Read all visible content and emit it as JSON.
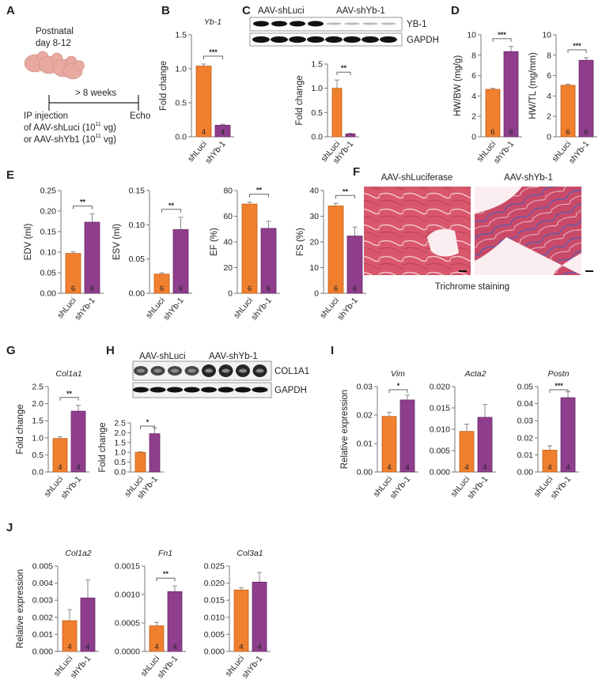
{
  "panels": {
    "A": "A",
    "B": "B",
    "C": "C",
    "D": "D",
    "E": "E",
    "F": "F",
    "G": "G",
    "H": "H",
    "I": "I",
    "J": "J"
  },
  "panel_a": {
    "age_line1": "Postnatal",
    "age_line2": "day 8-12",
    "duration": "> 8 weeks",
    "end_label": "Echo",
    "injection_line1": "IP injection",
    "injection_line2": "of AAV-shLuci (10",
    "injection_line2_exp": "11",
    "injection_line2_end": " vg)",
    "injection_line3": "or AAV-shYb1 (10",
    "injection_line3_exp": "11",
    "injection_line3_end": " vg)"
  },
  "blot_c": {
    "group1": "AAV-shLuci",
    "group2": "AAV-shYb-1",
    "row1": "YB-1",
    "row2": "GAPDH"
  },
  "blot_h": {
    "group1": "AAV-shLuci",
    "group2": "AAV-shYb-1",
    "row1": "COL1A1",
    "row2": "GAPDH"
  },
  "panel_f": {
    "left_title": "AAV-shLuciferase",
    "right_title": "AAV-shYb-1",
    "caption": "Trichrome staining"
  },
  "colors": {
    "shLuci": "#f07f2e",
    "shYb-1": "#8e3e8c",
    "shLuci_edge": "#c0601c",
    "shYb-1_edge": "#6a2a68"
  },
  "chart_data": [
    {
      "id": "B",
      "type": "bar",
      "title": "Yb-1",
      "ylabel": "Fold change",
      "categories": [
        "shLuci",
        "shYb-1"
      ],
      "values": [
        1.04,
        0.17
      ],
      "errors": [
        0.03,
        0.015
      ],
      "n": [
        "4",
        "4"
      ],
      "significance": "***",
      "ylim": [
        0,
        1.5
      ],
      "yticks": [
        "0.0",
        "0.5",
        "1.0",
        "1.5"
      ]
    },
    {
      "id": "C",
      "type": "bar",
      "title": "",
      "ylabel": "Fold change",
      "categories": [
        "shLuci",
        "shYb-1"
      ],
      "values": [
        1.0,
        0.06
      ],
      "errors": [
        0.17,
        0.01
      ],
      "n": [
        "",
        ""
      ],
      "significance": "**",
      "ylim": [
        0,
        1.5
      ],
      "yticks": [
        "0.0",
        "0.5",
        "1.0",
        "1.5"
      ]
    },
    {
      "id": "D1",
      "type": "bar",
      "title": "",
      "ylabel": "HW/BW (mg/g)",
      "categories": [
        "shLuci",
        "shYb-1"
      ],
      "values": [
        4.65,
        8.35
      ],
      "errors": [
        0.1,
        0.5
      ],
      "n": [
        "6",
        "6"
      ],
      "significance": "***",
      "ylim": [
        0,
        10
      ],
      "yticks": [
        "0",
        "2",
        "4",
        "6",
        "8",
        "10"
      ]
    },
    {
      "id": "D2",
      "type": "bar",
      "title": "",
      "ylabel": "HW/TL (mg/mm)",
      "categories": [
        "shLuci",
        "shYb-1"
      ],
      "values": [
        5.05,
        7.5
      ],
      "errors": [
        0.1,
        0.25
      ],
      "n": [
        "6",
        "6"
      ],
      "significance": "***",
      "ylim": [
        0,
        10
      ],
      "yticks": [
        "0",
        "2",
        "4",
        "6",
        "8",
        "10"
      ]
    },
    {
      "id": "E1",
      "type": "bar",
      "title": "",
      "ylabel": "EDV (ml)",
      "categories": [
        "shLuci",
        "shYb-1"
      ],
      "values": [
        0.097,
        0.173
      ],
      "errors": [
        0.004,
        0.02
      ],
      "n": [
        "6",
        "6"
      ],
      "significance": "**",
      "ylim": [
        0,
        0.25
      ],
      "yticks": [
        "0.00",
        "0.05",
        "0.10",
        "0.15",
        "0.20",
        "0.25"
      ]
    },
    {
      "id": "E2",
      "type": "bar",
      "title": "",
      "ylabel": "ESV (ml)",
      "categories": [
        "shLuci",
        "shYb-1"
      ],
      "values": [
        0.028,
        0.093
      ],
      "errors": [
        0.002,
        0.018
      ],
      "n": [
        "6",
        "6"
      ],
      "significance": "**",
      "ylim": [
        0,
        0.15
      ],
      "yticks": [
        "0.00",
        "0.05",
        "0.10",
        "0.15"
      ]
    },
    {
      "id": "E3",
      "type": "bar",
      "title": "",
      "ylabel": "EF (%)",
      "categories": [
        "shLuci",
        "shYb-1"
      ],
      "values": [
        69.5,
        50.5
      ],
      "errors": [
        1.5,
        5.5
      ],
      "n": [
        "6",
        "6"
      ],
      "significance": "**",
      "ylim": [
        0,
        80
      ],
      "yticks": [
        "0",
        "20",
        "40",
        "60",
        "80"
      ]
    },
    {
      "id": "E4",
      "type": "bar",
      "title": "",
      "ylabel": "FS (%)",
      "categories": [
        "shLuci",
        "shYb-1"
      ],
      "values": [
        34,
        22.3
      ],
      "errors": [
        1,
        3.5
      ],
      "n": [
        "6",
        "6"
      ],
      "significance": "**",
      "ylim": [
        0,
        40
      ],
      "yticks": [
        "0",
        "10",
        "20",
        "30",
        "40"
      ]
    },
    {
      "id": "G",
      "type": "bar",
      "title": "Col1a1",
      "ylabel": "Fold change",
      "categories": [
        "shLuci",
        "shYb-1"
      ],
      "values": [
        0.98,
        1.78
      ],
      "errors": [
        0.05,
        0.17
      ],
      "n": [
        "4",
        "4"
      ],
      "significance": "**",
      "ylim": [
        0,
        2.5
      ],
      "yticks": [
        "0.0",
        "0.5",
        "1.0",
        "1.5",
        "2.0",
        "2.5"
      ]
    },
    {
      "id": "H",
      "type": "bar",
      "title": "",
      "ylabel": "Fold change",
      "categories": [
        "shLuci",
        "shYb-1"
      ],
      "values": [
        1.0,
        1.95
      ],
      "errors": [
        0.03,
        0.3
      ],
      "n": [
        "",
        ""
      ],
      "significance": "*",
      "ylim": [
        0,
        2.5
      ],
      "yticks": [
        "0.0",
        "0.5",
        "1.0",
        "1.5",
        "2.0",
        "2.5"
      ]
    },
    {
      "id": "I1",
      "type": "bar",
      "title": "Vim",
      "ylabel": "Relative expression",
      "categories": [
        "shLuci",
        "shYb-1"
      ],
      "values": [
        0.0195,
        0.0253
      ],
      "errors": [
        0.0015,
        0.0017
      ],
      "n": [
        "4",
        "4"
      ],
      "significance": "*",
      "ylim": [
        0,
        0.03
      ],
      "yticks": [
        "0.00",
        "0.01",
        "0.02",
        "0.03"
      ]
    },
    {
      "id": "I2",
      "type": "bar",
      "title": "Acta2",
      "ylabel": "",
      "categories": [
        "shLuci",
        "shYb-1"
      ],
      "values": [
        0.0095,
        0.0128
      ],
      "errors": [
        0.0017,
        0.003
      ],
      "n": [
        "4",
        "4"
      ],
      "significance": "",
      "ylim": [
        0,
        0.02
      ],
      "yticks": [
        "0.000",
        "0.005",
        "0.010",
        "0.015",
        "0.020"
      ]
    },
    {
      "id": "I3",
      "type": "bar",
      "title": "Postn",
      "ylabel": "",
      "categories": [
        "shLuci",
        "shYb-1"
      ],
      "values": [
        0.0128,
        0.0435
      ],
      "errors": [
        0.0025,
        0.0035
      ],
      "n": [
        "4",
        "4"
      ],
      "significance": "***",
      "ylim": [
        0,
        0.05
      ],
      "yticks": [
        "0.00",
        "0.01",
        "0.02",
        "0.03",
        "0.04",
        "0.05"
      ]
    },
    {
      "id": "J1",
      "type": "bar",
      "title": "Col1a2",
      "ylabel": "Relative expression",
      "categories": [
        "shLuci",
        "shYb-1"
      ],
      "values": [
        0.0018,
        0.00313
      ],
      "errors": [
        0.00065,
        0.00105
      ],
      "n": [
        "4",
        "4"
      ],
      "significance": "",
      "ylim": [
        0,
        0.005
      ],
      "yticks": [
        "0.000",
        "0.001",
        "0.002",
        "0.003",
        "0.004",
        "0.005"
      ]
    },
    {
      "id": "J2",
      "type": "bar",
      "title": "Fn1",
      "ylabel": "",
      "categories": [
        "shLuci",
        "shYb-1"
      ],
      "values": [
        0.00045,
        0.00105
      ],
      "errors": [
        6e-05,
        0.0001
      ],
      "n": [
        "4",
        "4"
      ],
      "significance": "**",
      "ylim": [
        0,
        0.0015
      ],
      "yticks": [
        "0.0000",
        "0.0005",
        "0.0010",
        "0.0015"
      ]
    },
    {
      "id": "J3",
      "type": "bar",
      "title": "Col3a1",
      "ylabel": "",
      "categories": [
        "shLuci",
        "shYb-1"
      ],
      "values": [
        0.018,
        0.0203
      ],
      "errors": [
        0.0007,
        0.0028
      ],
      "n": [
        "4",
        "4"
      ],
      "significance": "",
      "ylim": [
        0,
        0.025
      ],
      "yticks": [
        "0.000",
        "0.005",
        "0.010",
        "0.015",
        "0.020",
        "0.025"
      ]
    }
  ]
}
